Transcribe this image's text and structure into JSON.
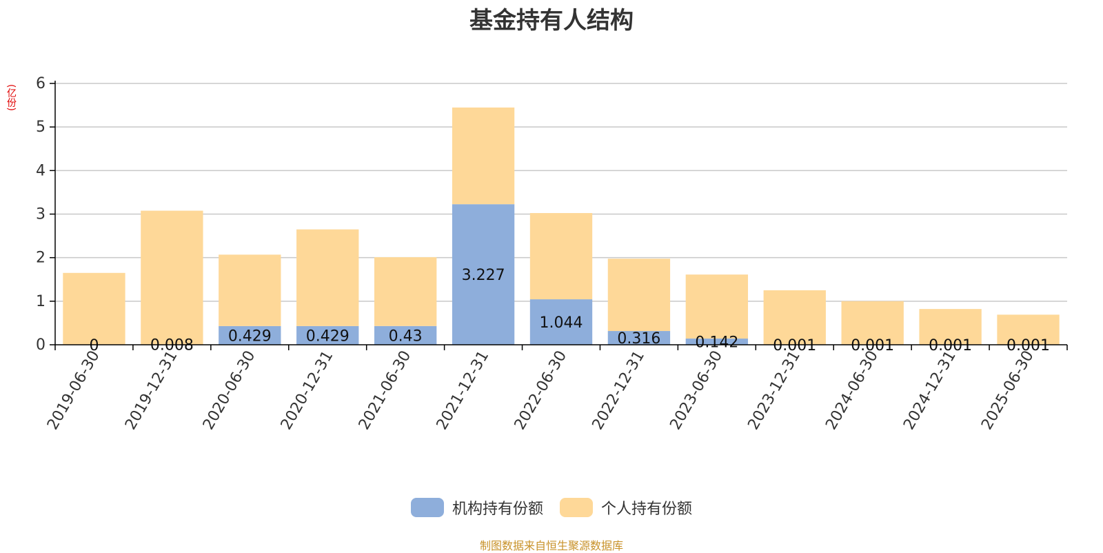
{
  "chart_data": {
    "type": "bar",
    "stacked": true,
    "title": "基金持有人结构",
    "unit_label": "(亿份)",
    "ylim": [
      0,
      6
    ],
    "yticks": [
      0,
      1,
      2,
      3,
      4,
      5,
      6
    ],
    "grid": true,
    "legend_position": "bottom-center",
    "categories": [
      "2019-06-30",
      "2019-12-31",
      "2020-06-30",
      "2020-12-31",
      "2021-06-30",
      "2021-12-31",
      "2022-06-30",
      "2022-12-31",
      "2023-06-30",
      "2023-12-31",
      "2024-06-30",
      "2024-12-31",
      "2025-06-30"
    ],
    "series": [
      {
        "name": "机构持有份额",
        "color": "#8eaedb",
        "values": [
          0,
          0.008,
          0.429,
          0.429,
          0.43,
          3.227,
          1.044,
          0.316,
          0.142,
          0.001,
          0.001,
          0.001,
          0.001
        ],
        "labels": [
          "0",
          "0.008",
          "0.429",
          "0.429",
          "0.43",
          "3.227",
          "1.044",
          "0.316",
          "0.142",
          "0.001",
          "0.001",
          "0.001",
          "0.001"
        ]
      },
      {
        "name": "个人持有份额",
        "color": "#fed898",
        "values": [
          1.65,
          3.07,
          1.64,
          2.22,
          1.58,
          2.22,
          1.98,
          1.66,
          1.47,
          1.25,
          1.0,
          0.82,
          0.69
        ]
      }
    ]
  },
  "footer": {
    "source": "制图数据来自恒生聚源数据库"
  }
}
